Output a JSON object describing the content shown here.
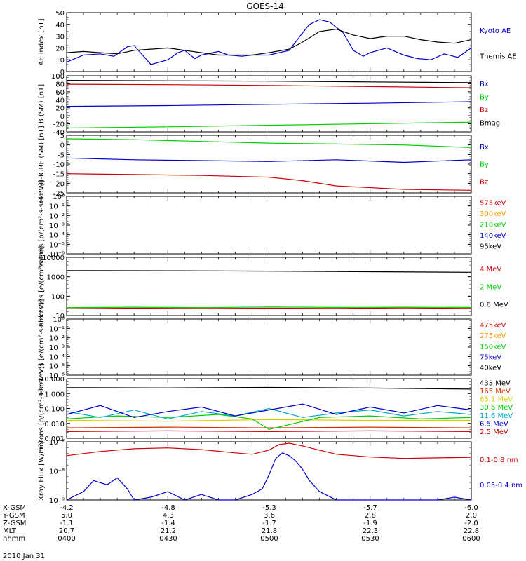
{
  "title": "GOES-14",
  "date_label": "2010 Jan 31",
  "x_ticks": [
    "0400",
    "0430",
    "0500",
    "0530",
    "0600"
  ],
  "ephemeris": [
    {
      "name": "X-GSM",
      "values": [
        "-4.2",
        "-4.8",
        "-5.3",
        "-5.7",
        "-6.0"
      ]
    },
    {
      "name": "Y-GSM",
      "values": [
        "5.0",
        "4.3",
        "3.6",
        "2.8",
        "2.0"
      ]
    },
    {
      "name": "Z-GSM",
      "values": [
        "-1.1",
        "-1.4",
        "-1.7",
        "-1.9",
        "-2.0"
      ]
    },
    {
      "name": "MLT",
      "values": [
        "20.7",
        "21.2",
        "21.8",
        "22.3",
        "22.8"
      ]
    },
    {
      "name": "hhmm",
      "values": [
        "0400",
        "0430",
        "0500",
        "0530",
        "0600"
      ]
    }
  ],
  "chart_data": [
    {
      "type": "line",
      "ylabel": "AE index [nT]",
      "ylim": [
        0,
        50
      ],
      "scale": "linear",
      "yticks": [
        "0",
        "10",
        "20",
        "30",
        "40",
        "50"
      ],
      "series": [
        {
          "name": "Kyoto AE",
          "color": "#0000cc",
          "x": [
            0,
            5,
            10,
            14,
            18,
            20,
            25,
            30,
            33,
            35,
            38,
            40,
            45,
            48,
            52,
            55,
            60,
            66,
            70,
            72,
            75,
            78,
            82,
            85,
            88,
            90,
            95,
            100,
            104,
            108,
            112,
            116,
            120
          ],
          "y": [
            8,
            14,
            15,
            13,
            21,
            22,
            6,
            10,
            16,
            18,
            11,
            14,
            17,
            14,
            13,
            14,
            14,
            18,
            33,
            40,
            44,
            42,
            33,
            18,
            13,
            16,
            20,
            14,
            11,
            10,
            15,
            12,
            20
          ]
        },
        {
          "name": "Themis AE",
          "color": "#000000",
          "x": [
            0,
            5,
            10,
            15,
            20,
            25,
            30,
            35,
            40,
            45,
            50,
            55,
            60,
            66,
            70,
            75,
            80,
            85,
            90,
            95,
            100,
            105,
            110,
            115,
            120
          ],
          "y": [
            16,
            17,
            16,
            15,
            18,
            19,
            20,
            18,
            16,
            14,
            14,
            14,
            16,
            19,
            25,
            34,
            36,
            31,
            28,
            30,
            30,
            27,
            25,
            24,
            27
          ]
        }
      ]
    },
    {
      "type": "line",
      "ylabel": "B (SM) [nT]",
      "ylim": [
        -45,
        100
      ],
      "scale": "linear",
      "yticks": [
        "-40",
        "-20",
        "0",
        "20",
        "40",
        "60",
        "80",
        "100"
      ],
      "series": [
        {
          "name": "Bx",
          "color": "#0000cc",
          "x": [
            0,
            30,
            60,
            90,
            120
          ],
          "y": [
            21,
            23,
            26,
            29,
            33
          ]
        },
        {
          "name": "By",
          "color": "#00cc00",
          "x": [
            0,
            30,
            60,
            90,
            120
          ],
          "y": [
            -35,
            -32,
            -28,
            -24,
            -20
          ]
        },
        {
          "name": "Bz",
          "color": "#cc0000",
          "x": [
            0,
            30,
            60,
            90,
            120
          ],
          "y": [
            78,
            77,
            75,
            72,
            69
          ]
        },
        {
          "name": "Bmag",
          "color": "#000000",
          "x": [
            0,
            30,
            60,
            90,
            120
          ],
          "y": [
            88,
            87,
            86,
            84,
            82
          ]
        }
      ]
    },
    {
      "type": "line",
      "ylabel": "B (SM)-IGRF (SM) [nT]",
      "ylim": [
        -27,
        6
      ],
      "scale": "linear",
      "yticks": [
        "-25",
        "-20",
        "-15",
        "-10",
        "-5",
        "0",
        "5"
      ],
      "series": [
        {
          "name": "Bx",
          "color": "#0000cc",
          "x": [
            0,
            20,
            40,
            60,
            80,
            100,
            120
          ],
          "y": [
            -7,
            -8,
            -8.5,
            -9,
            -8,
            -9.5,
            -8
          ]
        },
        {
          "name": "By",
          "color": "#00cc00",
          "x": [
            0,
            20,
            40,
            60,
            80,
            100,
            120
          ],
          "y": [
            4,
            3.5,
            2.5,
            1.5,
            1,
            0.5,
            -1
          ]
        },
        {
          "name": "Bz",
          "color": "#cc0000",
          "x": [
            0,
            20,
            40,
            60,
            70,
            80,
            100,
            120
          ],
          "y": [
            -16,
            -16.5,
            -17,
            -18,
            -20,
            -23,
            -25,
            -25.5
          ]
        }
      ]
    },
    {
      "type": "line",
      "ylabel": "Protons [p/(cm²-s-sr-keV)]",
      "ylim": [
        -6,
        0
      ],
      "scale": "log",
      "yticks": [
        "10⁻⁶",
        "10⁻⁵",
        "10⁻⁴",
        "10⁻³",
        "10⁻²",
        "10⁻¹",
        "10⁰"
      ],
      "series": [
        {
          "name": "575keV",
          "color": "#cc0000",
          "x": [],
          "y": []
        },
        {
          "name": "300keV",
          "color": "#ff9900",
          "x": [],
          "y": []
        },
        {
          "name": "210keV",
          "color": "#00cc00",
          "x": [],
          "y": []
        },
        {
          "name": "140keV",
          "color": "#0000cc",
          "x": [],
          "y": []
        },
        {
          "name": "95keV",
          "color": "#000000",
          "x": [],
          "y": []
        }
      ]
    },
    {
      "type": "line",
      "ylabel": "Electrons [e/(cm²-s-sr)]",
      "ylim": [
        1,
        4
      ],
      "scale": "log",
      "yticks": [
        "10",
        "100",
        "1000",
        "10000"
      ],
      "series": [
        {
          "name": "4 MeV",
          "color": "#cc0000",
          "x": [
            0,
            20,
            40,
            60,
            80,
            100,
            120
          ],
          "y": [
            1.35,
            1.38,
            1.36,
            1.38,
            1.37,
            1.39,
            1.37
          ]
        },
        {
          "name": "2 MeV",
          "color": "#00cc00",
          "x": [
            0,
            20,
            40,
            60,
            80,
            100,
            120
          ],
          "y": [
            1.41,
            1.43,
            1.41,
            1.44,
            1.42,
            1.43,
            1.42
          ]
        },
        {
          "name": "0.6 MeV",
          "color": "#000000",
          "x": [
            0,
            30,
            60,
            90,
            120
          ],
          "y": [
            3.32,
            3.31,
            3.29,
            3.26,
            3.23
          ]
        }
      ]
    },
    {
      "type": "line",
      "ylabel": "Electrons [e/(cm²-s-sr-keV)]",
      "ylim": [
        -6,
        0
      ],
      "scale": "log",
      "yticks": [
        "10⁻⁶",
        "10⁻⁵",
        "10⁻⁴",
        "10⁻³",
        "10⁻²",
        "10⁻¹",
        "10⁰"
      ],
      "series": [
        {
          "name": "475keV",
          "color": "#cc0000",
          "x": [],
          "y": []
        },
        {
          "name": "275keV",
          "color": "#ff9900",
          "x": [],
          "y": []
        },
        {
          "name": "150keV",
          "color": "#00cc00",
          "x": [],
          "y": []
        },
        {
          "name": "75keV",
          "color": "#0000cc",
          "x": [],
          "y": []
        },
        {
          "name": "40keV",
          "color": "#000000",
          "x": [],
          "y": []
        }
      ]
    },
    {
      "type": "line",
      "ylabel": "Protons [p/(cm²-s-sr-keV)]",
      "ylim": [
        -3,
        1
      ],
      "scale": "log",
      "yticks": [
        "0.001",
        "0.010",
        "0.100",
        "1.000",
        "10.000"
      ],
      "series": [
        {
          "name": "433 MeV",
          "color": "#000000",
          "x": [
            0,
            30,
            60,
            90,
            120
          ],
          "y": [
            0.4,
            0.38,
            0.41,
            0.37,
            0.3
          ]
        },
        {
          "name": "165 MeV",
          "color": "#cc3300",
          "x": [
            0,
            30,
            60,
            90,
            120
          ],
          "y": [
            -2.3,
            -2.25,
            -2.3,
            -2.25,
            -2.3
          ]
        },
        {
          "name": "63.1 MeV",
          "color": "#ddcc00",
          "x": [
            0,
            30,
            60,
            90,
            120
          ],
          "y": [
            -1.8,
            -1.85,
            -1.75,
            -1.8,
            -1.8
          ]
        },
        {
          "name": "30.6 MeV",
          "color": "#00cc00",
          "x": [
            0,
            15,
            30,
            45,
            55,
            60,
            75,
            90,
            105,
            120
          ],
          "y": [
            -1.7,
            -1.5,
            -1.6,
            -1.4,
            -1.7,
            -2.4,
            -1.6,
            -1.5,
            -1.7,
            -1.6
          ]
        },
        {
          "name": "11.6 MeV",
          "color": "#00aacc",
          "x": [
            0,
            10,
            20,
            30,
            40,
            50,
            60,
            70,
            80,
            90,
            100,
            110,
            120
          ],
          "y": [
            -1.2,
            -1.6,
            -1.1,
            -1.7,
            -1.2,
            -1.5,
            -1.0,
            -1.6,
            -1.3,
            -1.1,
            -1.5,
            -1.2,
            -1.4
          ]
        },
        {
          "name": "6.5 MeV",
          "color": "#0000cc",
          "x": [
            0,
            10,
            20,
            30,
            40,
            50,
            60,
            70,
            80,
            90,
            100,
            110,
            120
          ],
          "y": [
            -1.4,
            -0.8,
            -1.6,
            -1.2,
            -0.9,
            -1.5,
            -1.1,
            -0.7,
            -1.4,
            -0.9,
            -1.3,
            -0.8,
            -1.1
          ]
        },
        {
          "name": "2.5 MeV",
          "color": "#cc0000",
          "x": [
            0,
            30,
            60,
            90,
            120
          ],
          "y": [
            -2.55,
            -2.5,
            -2.55,
            -2.5,
            -2.55
          ]
        }
      ]
    },
    {
      "type": "line",
      "ylabel": "Xray Flux [W/m²]",
      "ylim": [
        -9,
        -6.9
      ],
      "scale": "log",
      "yticks": [
        "10⁻⁹",
        "10⁻⁸",
        "10⁻⁷"
      ],
      "series": [
        {
          "name": "0.1-0.8 nm",
          "color": "#cc0000",
          "x": [
            0,
            10,
            20,
            30,
            40,
            50,
            55,
            60,
            63,
            66,
            70,
            75,
            80,
            90,
            100,
            110,
            120
          ],
          "y": [
            -7.4,
            -7.25,
            -7.15,
            -7.12,
            -7.18,
            -7.3,
            -7.35,
            -7.2,
            -7.0,
            -6.95,
            -7.05,
            -7.2,
            -7.35,
            -7.45,
            -7.5,
            -7.48,
            -7.46
          ]
        },
        {
          "name": "0.05-0.4 nm",
          "color": "#0000cc",
          "x": [
            0,
            5,
            8,
            12,
            15,
            18,
            20,
            25,
            30,
            35,
            40,
            45,
            50,
            55,
            58,
            60,
            62,
            64,
            66,
            68,
            70,
            72,
            75,
            80,
            90,
            100,
            110,
            115,
            120
          ],
          "y": [
            -9,
            -8.7,
            -8.3,
            -8.45,
            -8.2,
            -8.6,
            -9,
            -8.9,
            -8.7,
            -9,
            -8.8,
            -9,
            -9,
            -8.8,
            -8.6,
            -8.1,
            -7.5,
            -7.3,
            -7.4,
            -7.6,
            -7.9,
            -8.3,
            -8.7,
            -9,
            -9,
            -9,
            -9,
            -8.9,
            -9
          ]
        }
      ]
    }
  ]
}
